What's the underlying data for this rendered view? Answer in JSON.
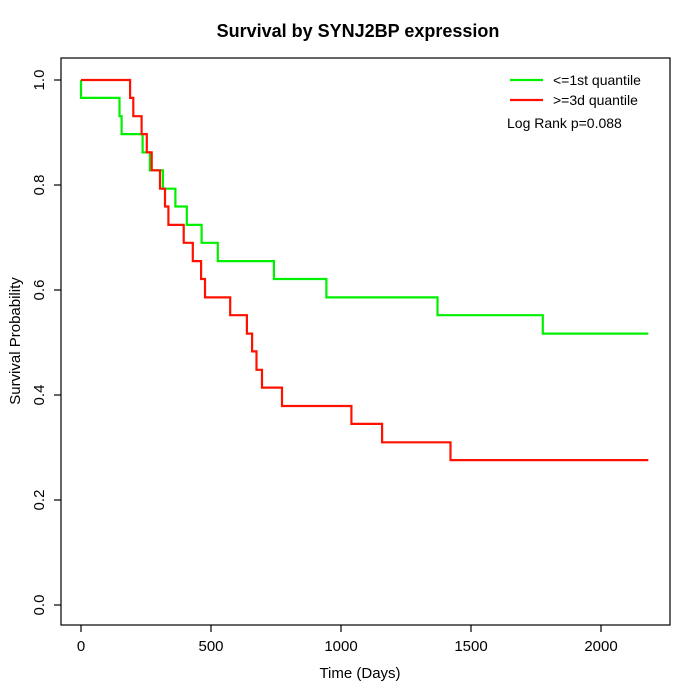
{
  "title": "Survival by SYNJ2BP expression",
  "x_axis": {
    "label": "Time (Days)",
    "ticks": [
      0,
      500,
      1000,
      1500,
      2000
    ]
  },
  "y_axis": {
    "label": "Survival Probability",
    "ticks": [
      {
        "value": 0.0,
        "label": "0.0"
      },
      {
        "value": 0.2,
        "label": "0.2"
      },
      {
        "value": 0.4,
        "label": "0.4"
      },
      {
        "value": 0.6,
        "label": "0.6"
      },
      {
        "value": 0.8,
        "label": "0.8"
      },
      {
        "value": 1.0,
        "label": "1.0"
      }
    ]
  },
  "legend": {
    "items": [
      {
        "label": "<=1st quantile",
        "color": "#00f000"
      },
      {
        "label": ">=3d quantile",
        "color": "#ff1100"
      }
    ],
    "annotation": "Log Rank p=0.088"
  },
  "colors": {
    "axis": "#000000",
    "background": "#ffffff"
  },
  "chart_data": {
    "type": "line",
    "subtype": "kaplan-meier-step",
    "title": "Survival by SYNJ2BP expression",
    "xlabel": "Time (Days)",
    "ylabel": "Survival Probability",
    "xlim": [
      -81,
      2266
    ],
    "ylim": [
      -0.038,
      1.042
    ],
    "grid": false,
    "legend_position": "top-right-inside",
    "series": [
      {
        "name": "<=1st quantile",
        "color": "#00f000",
        "steps": [
          [
            0,
            1.0
          ],
          [
            0,
            0.966
          ],
          [
            148,
            0.931
          ],
          [
            156,
            0.897
          ],
          [
            237,
            0.862
          ],
          [
            265,
            0.828
          ],
          [
            315,
            0.793
          ],
          [
            363,
            0.759
          ],
          [
            407,
            0.724
          ],
          [
            464,
            0.69
          ],
          [
            526,
            0.655
          ],
          [
            742,
            0.621
          ],
          [
            944,
            0.586
          ],
          [
            1371,
            0.552
          ],
          [
            1776,
            0.517
          ],
          [
            2182,
            0.517
          ]
        ]
      },
      {
        "name": ">=3d quantile",
        "color": "#ff1100",
        "steps": [
          [
            0,
            1.0
          ],
          [
            189,
            0.966
          ],
          [
            201,
            0.931
          ],
          [
            233,
            0.897
          ],
          [
            253,
            0.862
          ],
          [
            272,
            0.828
          ],
          [
            304,
            0.793
          ],
          [
            323,
            0.759
          ],
          [
            336,
            0.724
          ],
          [
            395,
            0.69
          ],
          [
            430,
            0.655
          ],
          [
            462,
            0.621
          ],
          [
            477,
            0.586
          ],
          [
            574,
            0.552
          ],
          [
            638,
            0.517
          ],
          [
            658,
            0.483
          ],
          [
            675,
            0.448
          ],
          [
            696,
            0.414
          ],
          [
            773,
            0.379
          ],
          [
            1040,
            0.345
          ],
          [
            1158,
            0.31
          ],
          [
            1421,
            0.276
          ],
          [
            2182,
            0.276
          ]
        ]
      }
    ]
  }
}
